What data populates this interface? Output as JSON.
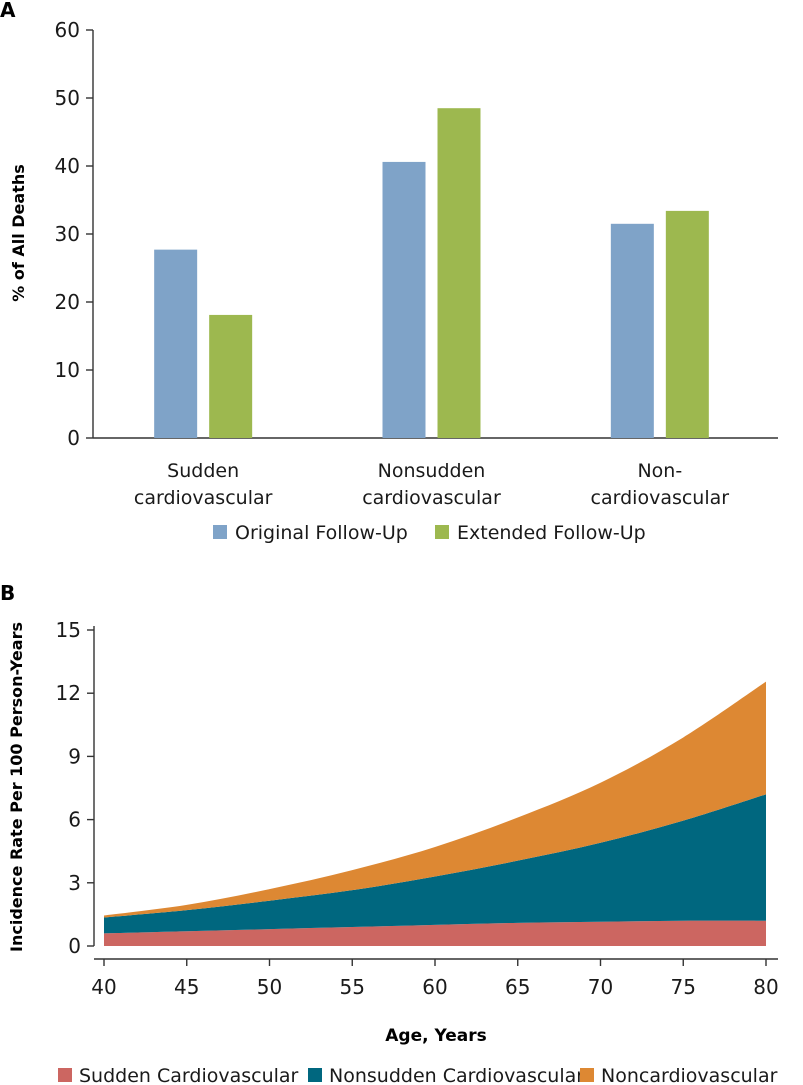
{
  "panels": {
    "a_label": "A",
    "b_label": "B"
  },
  "chart_data": [
    {
      "type": "bar",
      "panel": "A",
      "title": "",
      "categories": [
        [
          "Sudden",
          "cardiovascular"
        ],
        [
          "Nonsudden",
          "cardiovascular"
        ],
        [
          "Non-",
          "cardiovascular"
        ]
      ],
      "series": [
        {
          "name": "Original Follow-Up",
          "color": "#7fa3c8",
          "values": [
            27.7,
            40.6,
            31.5
          ]
        },
        {
          "name": "Extended Follow-Up",
          "color": "#9db84f",
          "values": [
            18.1,
            48.5,
            33.4
          ]
        }
      ],
      "xlabel": "",
      "ylabel": "% of All Deaths",
      "ylim": [
        0,
        60
      ],
      "yticks": [
        0,
        10,
        20,
        30,
        40,
        50,
        60
      ],
      "grid": false,
      "legend": "bottom"
    },
    {
      "type": "area",
      "panel": "B",
      "stacked": true,
      "x": [
        40,
        45,
        50,
        55,
        60,
        65,
        70,
        75,
        80
      ],
      "series": [
        {
          "name": "Sudden Cardiovascular",
          "color": "#cc6661",
          "values": [
            0.6,
            0.7,
            0.8,
            0.9,
            1.0,
            1.1,
            1.15,
            1.2,
            1.2
          ]
        },
        {
          "name": "Nonsudden Cardiovascular",
          "color": "#00677f",
          "values": [
            0.75,
            1.0,
            1.35,
            1.75,
            2.3,
            2.95,
            3.75,
            4.75,
            6.0
          ]
        },
        {
          "name": "Noncardiovascular",
          "color": "#dd8833",
          "values": [
            0.1,
            0.25,
            0.55,
            0.95,
            1.4,
            2.05,
            2.85,
            3.95,
            5.35
          ]
        }
      ],
      "xlabel": "Age, Years",
      "ylabel": "Incidence Rate Per 100 Person-Years",
      "xlim": [
        40,
        80
      ],
      "ylim": [
        0,
        15
      ],
      "xticks": [
        40,
        45,
        50,
        55,
        60,
        65,
        70,
        75,
        80
      ],
      "yticks": [
        0,
        3,
        6,
        9,
        12,
        15
      ],
      "grid": false,
      "legend": "bottom"
    }
  ]
}
